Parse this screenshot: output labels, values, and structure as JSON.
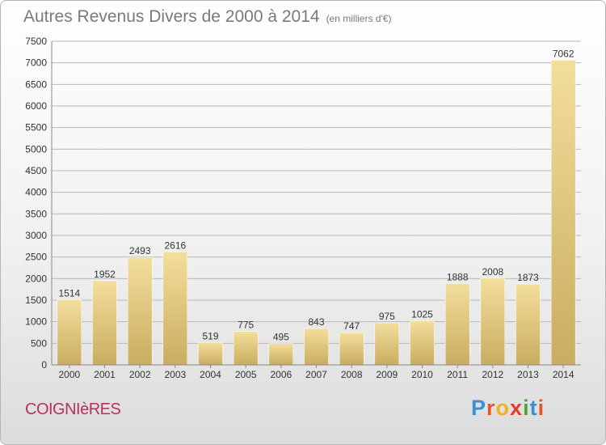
{
  "header": {
    "title": "Autres Revenus Divers de 2000 à 2014",
    "subtitle": "(en milliers d'€)"
  },
  "footer": {
    "commune": "COIGNIèRES",
    "logo_letters": [
      "P",
      "r",
      "o",
      "x",
      "i",
      "t",
      "i"
    ],
    "logo_colors": [
      "#3a8fd8",
      "#e8542a",
      "#f0b020",
      "#e83a2a",
      "#4aa830",
      "#3a8fd8",
      "#e8542a"
    ]
  },
  "colors": {
    "bar_light": "#f3de9c",
    "bar_dark": "#c9ad60",
    "grid": "#b8b8b8",
    "axis_text": "#333333"
  },
  "chart_data": {
    "type": "bar",
    "categories": [
      "2000",
      "2001",
      "2002",
      "2003",
      "2004",
      "2005",
      "2006",
      "2007",
      "2008",
      "2009",
      "2010",
      "2011",
      "2012",
      "2013",
      "2014"
    ],
    "values": [
      1514,
      1952,
      2493,
      2616,
      519,
      775,
      495,
      843,
      747,
      975,
      1025,
      1888,
      2008,
      1873,
      7062
    ],
    "ylim": [
      0,
      7500
    ],
    "yticks": [
      0,
      500,
      1000,
      1500,
      2000,
      2500,
      3000,
      3500,
      4000,
      4500,
      5000,
      5500,
      6000,
      6500,
      7000,
      7500
    ],
    "grid": true,
    "data_labels": true
  }
}
